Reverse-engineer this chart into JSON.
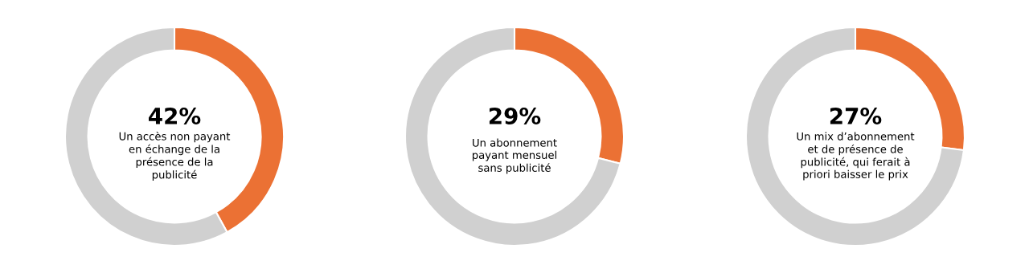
{
  "chart_data": [
    {
      "type": "donut",
      "categories": [
        null,
        null
      ],
      "values": [
        42,
        58
      ],
      "colors": [
        "#eb7134",
        "#d0d0d0"
      ],
      "value_labels": [
        "42%",
        null
      ],
      "annotations": [
        "Un accès non payant\nen échange de la\nprésence de la\npublicité"
      ]
    },
    {
      "type": "donut",
      "categories": [
        null,
        null
      ],
      "values": [
        29,
        71
      ],
      "colors": [
        "#eb7134",
        "#d0d0d0"
      ],
      "value_labels": [
        "29%",
        null
      ],
      "annotations": [
        "Un abonnement\npayant mensuel\nsans publicité"
      ]
    },
    {
      "type": "donut",
      "categories": [
        null,
        null
      ],
      "values": [
        27,
        73
      ],
      "colors": [
        "#eb7134",
        "#d0d0d0"
      ],
      "value_labels": [
        "27%",
        null
      ],
      "annotations": [
        "Un mix d’abonnement\net de présence de\npublicité, qui ferait à\npriori baisser le prix"
      ]
    }
  ]
}
